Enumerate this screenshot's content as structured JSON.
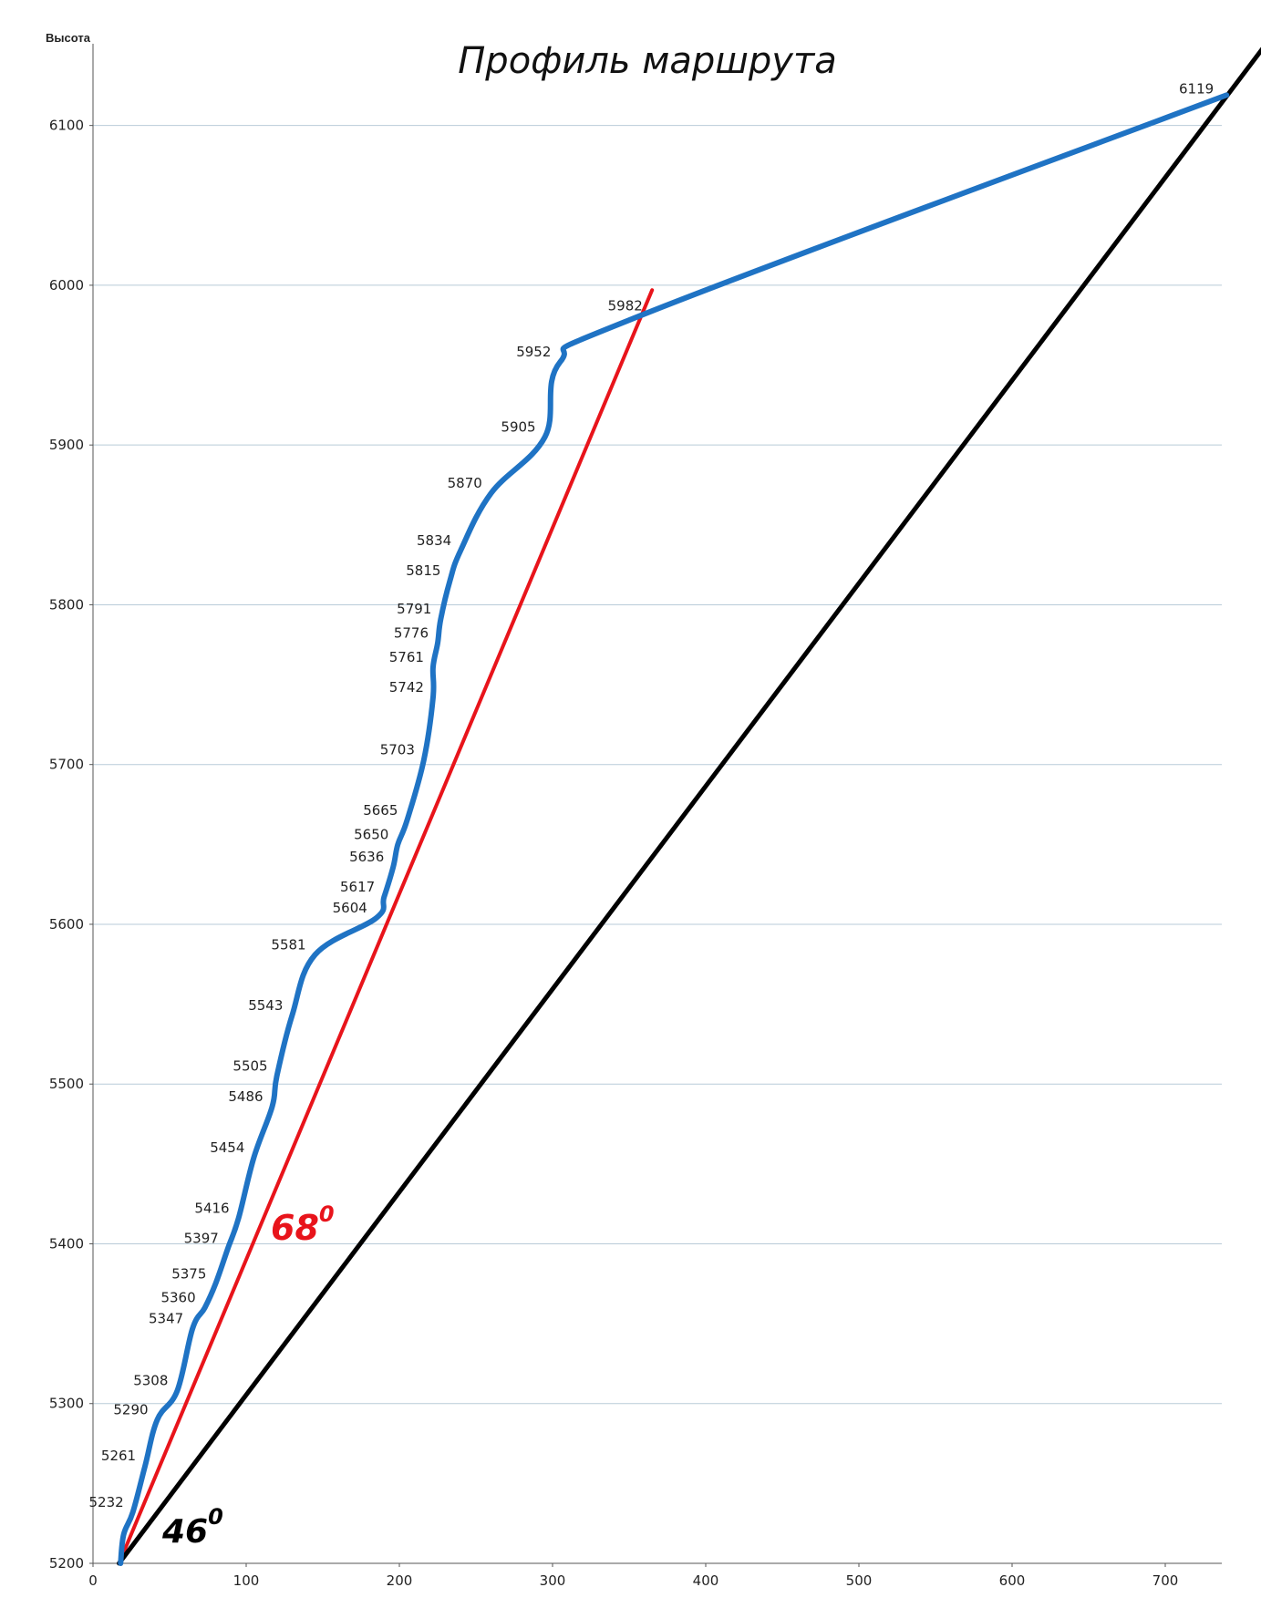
{
  "chart_data": {
    "type": "line",
    "title": "Профиль маршрута",
    "ylabel": "Высота",
    "xlabel": "",
    "xlim": [
      0,
      740
    ],
    "ylim": [
      5200,
      6150
    ],
    "x_ticks": [
      0,
      100,
      200,
      300,
      400,
      500,
      600,
      700
    ],
    "y_ticks": [
      5200,
      5300,
      5400,
      5500,
      5600,
      5700,
      5800,
      5900,
      6000,
      6100
    ],
    "grid": "horizontal",
    "colors": {
      "profile": "#1f73c4",
      "line68": "#e8141b",
      "line46": "#000000",
      "grid": "#b9cbd8"
    },
    "series": [
      {
        "points": [
          [
            18,
            5200
          ],
          [
            20,
            5218
          ],
          [
            26,
            5232
          ],
          [
            34,
            5261
          ],
          [
            42,
            5290
          ],
          [
            55,
            5308
          ],
          [
            65,
            5347
          ],
          [
            73,
            5360
          ],
          [
            80,
            5375
          ],
          [
            88,
            5397
          ],
          [
            95,
            5416
          ],
          [
            105,
            5454
          ],
          [
            117,
            5486
          ],
          [
            120,
            5505
          ],
          [
            130,
            5543
          ],
          [
            145,
            5581
          ],
          [
            185,
            5604
          ],
          [
            190,
            5617
          ],
          [
            196,
            5636
          ],
          [
            199,
            5650
          ],
          [
            205,
            5665
          ],
          [
            216,
            5703
          ],
          [
            222,
            5742
          ],
          [
            222,
            5761
          ],
          [
            225,
            5776
          ],
          [
            227,
            5791
          ],
          [
            233,
            5815
          ],
          [
            240,
            5834
          ],
          [
            260,
            5870
          ],
          [
            295,
            5905
          ],
          [
            305,
            5952
          ],
          [
            360,
            5982
          ],
          [
            740,
            6119
          ]
        ],
        "point_labels": [
          {
            "x": 26,
            "y": 5232,
            "label": "5232"
          },
          {
            "x": 34,
            "y": 5261,
            "label": "5261"
          },
          {
            "x": 42,
            "y": 5290,
            "label": "5290"
          },
          {
            "x": 55,
            "y": 5308,
            "label": "5308"
          },
          {
            "x": 65,
            "y": 5347,
            "label": "5347"
          },
          {
            "x": 73,
            "y": 5360,
            "label": "5360"
          },
          {
            "x": 80,
            "y": 5375,
            "label": "5375"
          },
          {
            "x": 88,
            "y": 5397,
            "label": "5397"
          },
          {
            "x": 95,
            "y": 5416,
            "label": "5416"
          },
          {
            "x": 105,
            "y": 5454,
            "label": "5454"
          },
          {
            "x": 117,
            "y": 5486,
            "label": "5486"
          },
          {
            "x": 120,
            "y": 5505,
            "label": "5505"
          },
          {
            "x": 130,
            "y": 5543,
            "label": "5543"
          },
          {
            "x": 145,
            "y": 5581,
            "label": "5581"
          },
          {
            "x": 185,
            "y": 5604,
            "label": "5604"
          },
          {
            "x": 190,
            "y": 5617,
            "label": "5617"
          },
          {
            "x": 196,
            "y": 5636,
            "label": "5636"
          },
          {
            "x": 199,
            "y": 5650,
            "label": "5650"
          },
          {
            "x": 205,
            "y": 5665,
            "label": "5665"
          },
          {
            "x": 216,
            "y": 5703,
            "label": "5703"
          },
          {
            "x": 222,
            "y": 5742,
            "label": "5742"
          },
          {
            "x": 222,
            "y": 5761,
            "label": "5761"
          },
          {
            "x": 225,
            "y": 5776,
            "label": "5776"
          },
          {
            "x": 227,
            "y": 5791,
            "label": "5791"
          },
          {
            "x": 233,
            "y": 5815,
            "label": "5815"
          },
          {
            "x": 240,
            "y": 5834,
            "label": "5834"
          },
          {
            "x": 260,
            "y": 5870,
            "label": "5870"
          },
          {
            "x": 295,
            "y": 5905,
            "label": "5905"
          },
          {
            "x": 305,
            "y": 5952,
            "label": "5952"
          },
          {
            "x": 360,
            "y": 5982,
            "label": "5982"
          },
          {
            "x": 740,
            "y": 6119,
            "label": "6119"
          }
        ]
      }
    ],
    "reference_lines": [
      {
        "label": "68",
        "superscript": "0",
        "from": [
          17,
          5200
        ],
        "to": [
          365,
          5997
        ]
      },
      {
        "label": "46",
        "superscript": "0",
        "from": [
          17,
          5200
        ],
        "to": [
          765,
          6150
        ]
      }
    ]
  }
}
